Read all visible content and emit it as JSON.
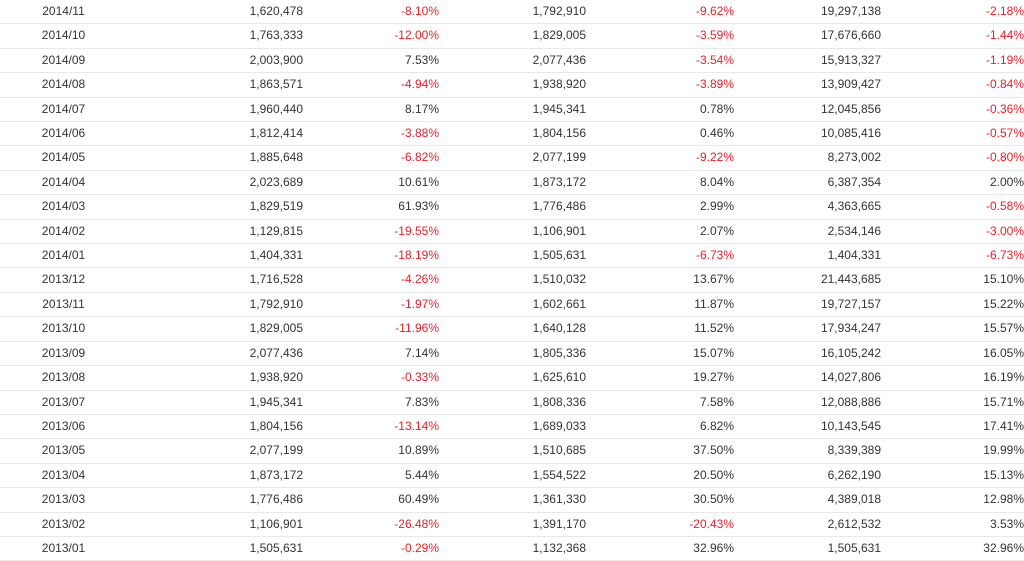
{
  "colors": {
    "text": "#333333",
    "negative": "#e8202a",
    "row_border": "#e8e8e8"
  },
  "rows": [
    [
      "2014/11",
      "1,620,478",
      "-8.10%",
      "1,792,910",
      "-9.62%",
      "19,297,138",
      "-2.18%"
    ],
    [
      "2014/10",
      "1,763,333",
      "-12.00%",
      "1,829,005",
      "-3.59%",
      "17,676,660",
      "-1.44%"
    ],
    [
      "2014/09",
      "2,003,900",
      "7.53%",
      "2,077,436",
      "-3.54%",
      "15,913,327",
      "-1.19%"
    ],
    [
      "2014/08",
      "1,863,571",
      "-4.94%",
      "1,938,920",
      "-3.89%",
      "13,909,427",
      "-0.84%"
    ],
    [
      "2014/07",
      "1,960,440",
      "8.17%",
      "1,945,341",
      "0.78%",
      "12,045,856",
      "-0.36%"
    ],
    [
      "2014/06",
      "1,812,414",
      "-3.88%",
      "1,804,156",
      "0.46%",
      "10,085,416",
      "-0.57%"
    ],
    [
      "2014/05",
      "1,885,648",
      "-6.82%",
      "2,077,199",
      "-9.22%",
      "8,273,002",
      "-0.80%"
    ],
    [
      "2014/04",
      "2,023,689",
      "10.61%",
      "1,873,172",
      "8.04%",
      "6,387,354",
      "2.00%"
    ],
    [
      "2014/03",
      "1,829,519",
      "61.93%",
      "1,776,486",
      "2.99%",
      "4,363,665",
      "-0.58%"
    ],
    [
      "2014/02",
      "1,129,815",
      "-19.55%",
      "1,106,901",
      "2.07%",
      "2,534,146",
      "-3.00%"
    ],
    [
      "2014/01",
      "1,404,331",
      "-18.19%",
      "1,505,631",
      "-6.73%",
      "1,404,331",
      "-6.73%"
    ],
    [
      "2013/12",
      "1,716,528",
      "-4.26%",
      "1,510,032",
      "13.67%",
      "21,443,685",
      "15.10%"
    ],
    [
      "2013/11",
      "1,792,910",
      "-1.97%",
      "1,602,661",
      "11.87%",
      "19,727,157",
      "15.22%"
    ],
    [
      "2013/10",
      "1,829,005",
      "-11.96%",
      "1,640,128",
      "11.52%",
      "17,934,247",
      "15.57%"
    ],
    [
      "2013/09",
      "2,077,436",
      "7.14%",
      "1,805,336",
      "15.07%",
      "16,105,242",
      "16.05%"
    ],
    [
      "2013/08",
      "1,938,920",
      "-0.33%",
      "1,625,610",
      "19.27%",
      "14,027,806",
      "16.19%"
    ],
    [
      "2013/07",
      "1,945,341",
      "7.83%",
      "1,808,336",
      "7.58%",
      "12,088,886",
      "15.71%"
    ],
    [
      "2013/06",
      "1,804,156",
      "-13.14%",
      "1,689,033",
      "6.82%",
      "10,143,545",
      "17.41%"
    ],
    [
      "2013/05",
      "2,077,199",
      "10.89%",
      "1,510,685",
      "37.50%",
      "8,339,389",
      "19.99%"
    ],
    [
      "2013/04",
      "1,873,172",
      "5.44%",
      "1,554,522",
      "20.50%",
      "6,262,190",
      "15.13%"
    ],
    [
      "2013/03",
      "1,776,486",
      "60.49%",
      "1,361,330",
      "30.50%",
      "4,389,018",
      "12.98%"
    ],
    [
      "2013/02",
      "1,106,901",
      "-26.48%",
      "1,391,170",
      "-20.43%",
      "2,612,532",
      "3.53%"
    ],
    [
      "2013/01",
      "1,505,631",
      "-0.29%",
      "1,132,368",
      "32.96%",
      "1,505,631",
      "32.96%"
    ]
  ]
}
